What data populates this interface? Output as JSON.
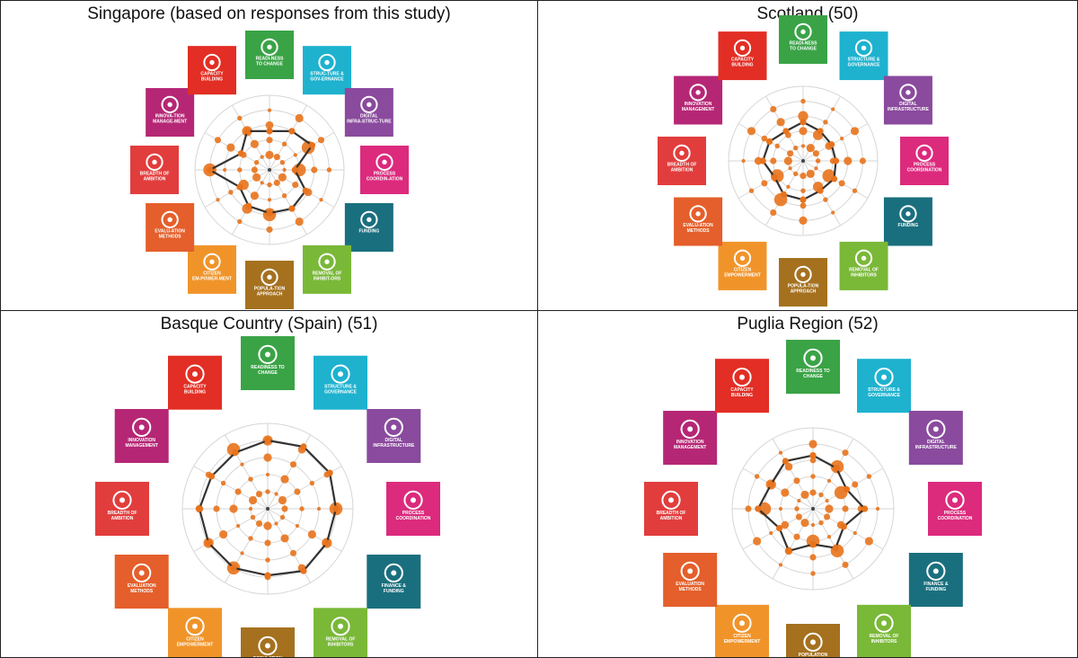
{
  "chart_data": [
    {
      "type": "radar",
      "title": "Singapore (based on responses from this study)",
      "categories": [
        "READI-NESS TO CHANGE",
        "STRUC-TURE & GOV-ERNANCE",
        "DIGITAL INFRA-STRUC-TURE",
        "PROCESS COORDIN-ATION",
        "FUNDING",
        "REMOVAL OF INHIBIT-ORS",
        "POPULA-TION APPROACH",
        "CITIZEN EM-POWER-MENT",
        "EVALU-ATION METHODS",
        "BREADTH OF AMBITION",
        "INNOVA-TION MANAGE-MENT",
        "CAPACITY BUILDING"
      ],
      "values": [
        2.6,
        3.0,
        3.3,
        1.7,
        2.8,
        3.0,
        2.9,
        2.8,
        2.3,
        4.0,
        2.2,
        3.0
      ],
      "rlim": [
        0,
        5
      ]
    },
    {
      "type": "radar",
      "title": "Scotland (50)",
      "categories": [
        "READI-NESS TO CHANGE",
        "STRUCTURE & GOVERNANCE",
        "DIGITAL INFRASTRUCTURE",
        "PROCESS COORDINATION",
        "FUNDING",
        "REMOVAL OF INHIBITORS",
        "POPULA-TION APPROACH",
        "CITIZEN EMPOWERMENT",
        "EVALU-ATION METHODS",
        "BREADTH OF AMBITION",
        "INNOVATION MANAGEMENT",
        "CAPACITY BUILDING"
      ],
      "values": [
        2.6,
        2.3,
        2.2,
        2.2,
        2.4,
        2.3,
        2.6,
        2.6,
        2.2,
        2.7,
        2.6,
        2.3
      ],
      "rlim": [
        0,
        5
      ]
    },
    {
      "type": "radar",
      "title": "Basque Country (Spain) (51)",
      "categories": [
        "READINESS TO CHANGE",
        "STRUCTURE & GOVERNANCE",
        "DIGITAL INFRASTRUCTURE",
        "PROCESS COORDINATION",
        "FINANCE & FUNDING",
        "REMOVAL OF INHIBITORS",
        "POPULATION APPROACH",
        "CITIZEN EMPOWERMENT",
        "EVALUATION METHODS",
        "BREADTH OF AMBITION",
        "INNOVATION MANAGEMENT",
        "CAPACITY BUILDING"
      ],
      "values": [
        4.0,
        4.2,
        4.2,
        4.0,
        4.0,
        4.2,
        3.9,
        4.0,
        4.0,
        4.0,
        3.8,
        3.8
      ],
      "rlim": [
        0,
        5
      ]
    },
    {
      "type": "radar",
      "title": "Puglia Region (52)",
      "categories": [
        "READINESS TO CHANGE",
        "STRUCTURE & GOVERNANCE",
        "DIGITAL INFRASTRUCTURE",
        "PROCESS COORDINATION",
        "FINANCE & FUNDING",
        "REMOVAL OF INHIBITORS",
        "POPULATION APPROACH",
        "CITIZEN EMPOWERMENT",
        "EVALUATION METHODS",
        "BREADTH OF AMBITION",
        "INNOVATION MANAGEMENT",
        "CAPACITY BUILDING"
      ],
      "values": [
        3.3,
        2.9,
        2.4,
        3.2,
        2.2,
        2.8,
        2.2,
        3.0,
        2.4,
        3.4,
        3.0,
        3.4
      ],
      "rlim": [
        0,
        5
      ]
    }
  ],
  "tile_colors": [
    "#3aa346",
    "#1eb2cf",
    "#8a4a9d",
    "#dc2a7d",
    "#1a6f7e",
    "#7ab838",
    "#a5711f",
    "#f0942a",
    "#e45f2b",
    "#e23d3d",
    "#b52775",
    "#e22e24"
  ],
  "series_color": "#333333",
  "dot_color": "#e8731c",
  "grid_color": "#d6d6d6"
}
